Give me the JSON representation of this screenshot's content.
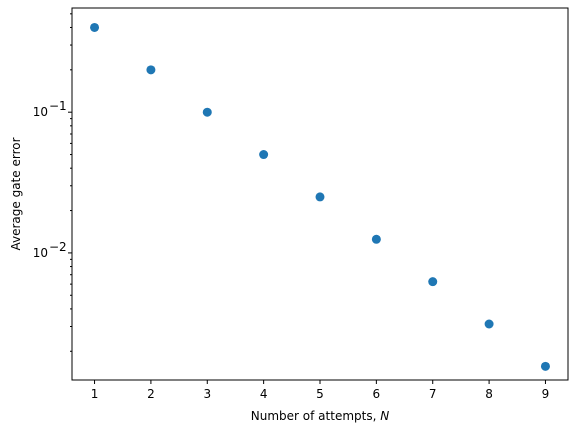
{
  "chart_data": {
    "type": "scatter",
    "x": [
      1,
      2,
      3,
      4,
      5,
      6,
      7,
      8,
      9
    ],
    "y": [
      0.4,
      0.2,
      0.1,
      0.05,
      0.025,
      0.0125,
      0.00625,
      0.003125,
      0.0015625
    ],
    "xlabel": "Number of attempts, N",
    "xlabel_prefix": "Number of attempts, ",
    "xlabel_var": "N",
    "ylabel": "Average gate error",
    "xlim": [
      0.6,
      9.4
    ],
    "ylim": [
      0.00125,
      0.55
    ],
    "yscale": "log",
    "x_ticks": [
      1,
      2,
      3,
      4,
      5,
      6,
      7,
      8,
      9
    ],
    "y_major_ticks": [
      0.01,
      0.1
    ],
    "y_major_tick_labels": [
      "10",
      "10"
    ],
    "y_major_tick_exponents": [
      "−2",
      "−1"
    ],
    "grid": false,
    "marker_color": "#1f77b4"
  }
}
